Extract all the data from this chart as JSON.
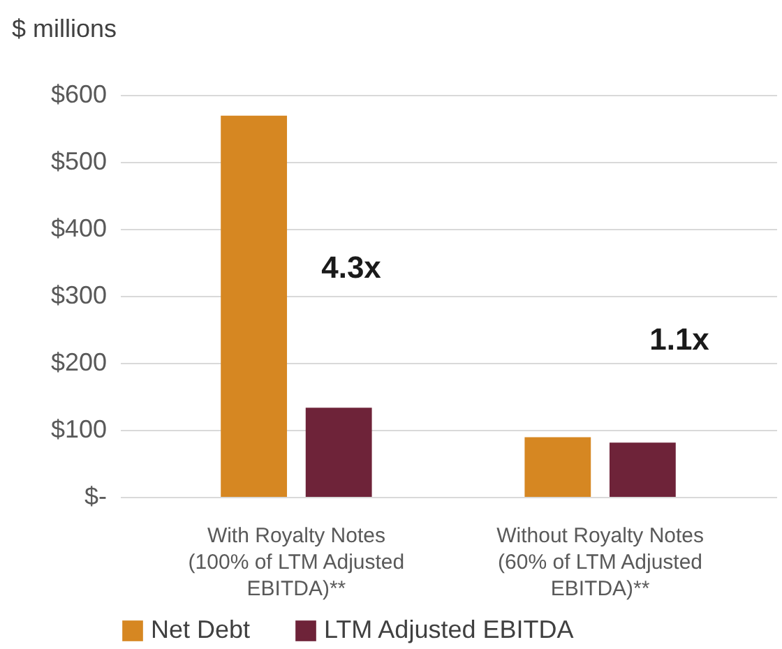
{
  "chart_data": {
    "type": "bar",
    "ylabel": "$ millions",
    "categories": [
      "With Royalty Notes\n(100% of LTM Adjusted\nEBITDA)**",
      "Without Royalty Notes\n(60% of LTM Adjusted\nEBITDA)**"
    ],
    "series": [
      {
        "name": "Net Debt",
        "color": "#d68722",
        "values": [
          569,
          89
        ]
      },
      {
        "name": "LTM Adjusted EBITDA",
        "color": "#6e2339",
        "values": [
          133,
          81
        ]
      }
    ],
    "ylim": [
      0,
      600
    ],
    "yticks": [
      {
        "value": 0,
        "label": "$-"
      },
      {
        "value": 100,
        "label": "$100"
      },
      {
        "value": 200,
        "label": "$200"
      },
      {
        "value": 300,
        "label": "$300"
      },
      {
        "value": 400,
        "label": "$400"
      },
      {
        "value": 500,
        "label": "$500"
      },
      {
        "value": 600,
        "label": "$600"
      }
    ],
    "annotations": [
      "4.3x",
      "1.1x"
    ],
    "grid": "y",
    "legend": "bottom"
  }
}
